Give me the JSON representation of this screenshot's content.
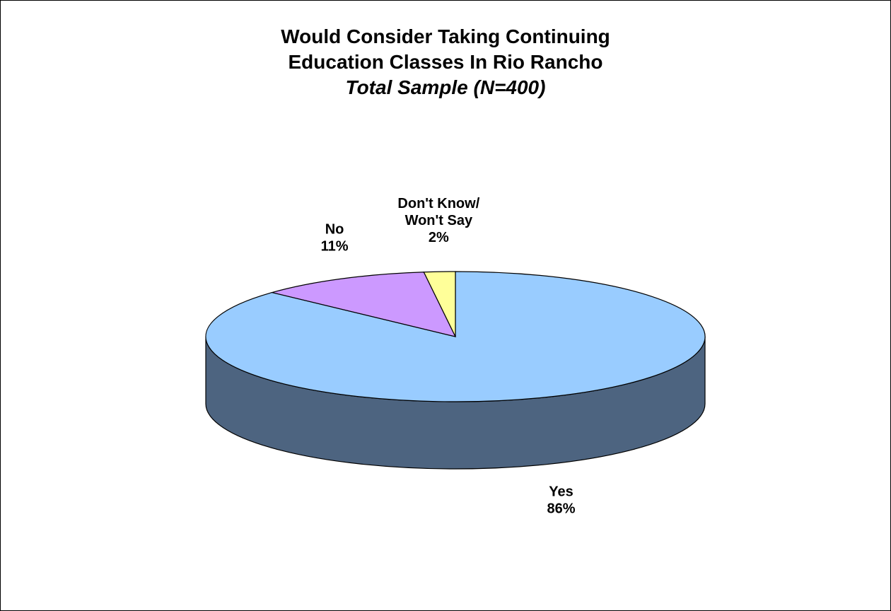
{
  "chart_data": {
    "type": "pie",
    "title_lines": [
      "Would Consider Taking Continuing",
      "Education Classes In Rio Rancho"
    ],
    "subtitle": "Total Sample (N=400)",
    "slices": [
      {
        "label_lines": [
          "Yes"
        ],
        "value": 86,
        "value_label": "86%",
        "color": "#99CCFF",
        "side_color": "#4D6480"
      },
      {
        "label_lines": [
          "No"
        ],
        "value": 11,
        "value_label": "11%",
        "color": "#CC99FF",
        "side_color": "#664D80"
      },
      {
        "label_lines": [
          "Don't Know/",
          "Won't Say"
        ],
        "value": 2,
        "value_label": "2%",
        "color": "#FFFF99",
        "side_color": "#80804D"
      }
    ],
    "style": "3d-pie",
    "legend": "none"
  }
}
